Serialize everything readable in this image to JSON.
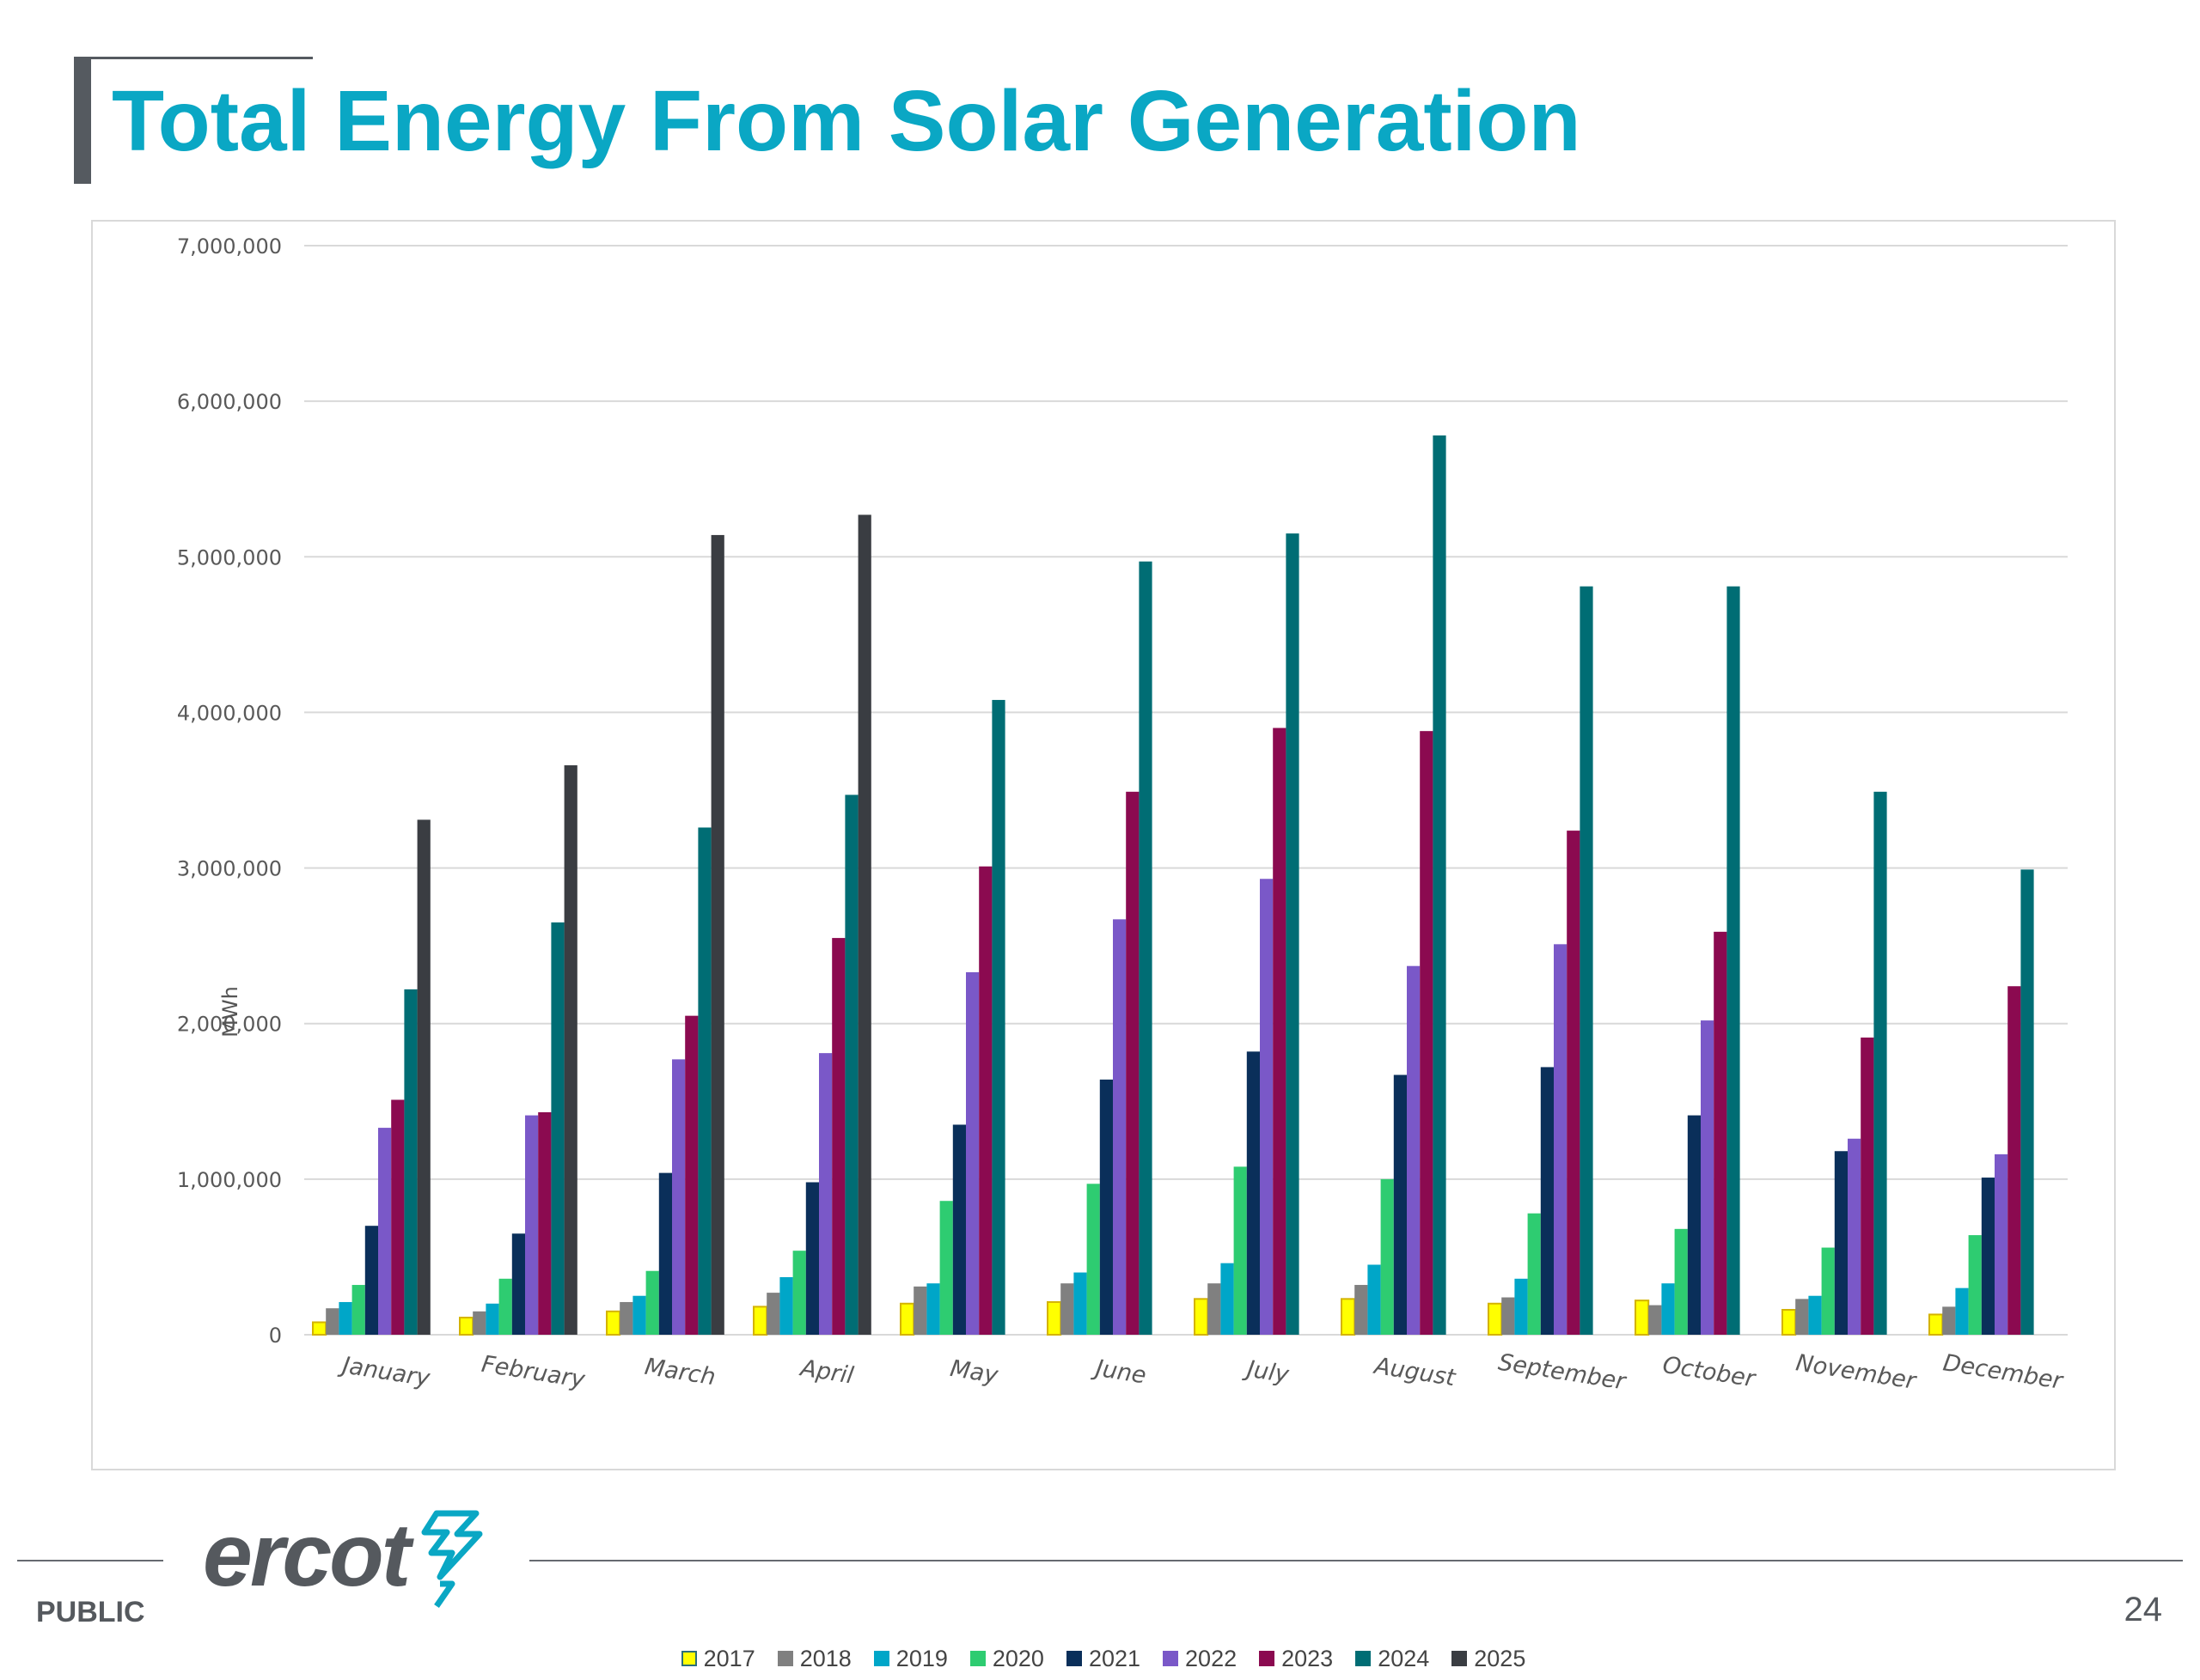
{
  "slide": {
    "title": "Total Energy From Solar Generation",
    "footer_label": "PUBLIC",
    "page_number": "24",
    "logo_text": "ercot"
  },
  "colors": {
    "title": "#0aa7c4",
    "logo": "#55595e",
    "logo_accent": "#0aa7c4"
  },
  "chart_data": {
    "type": "bar",
    "title": "",
    "xlabel": "",
    "ylabel": "MWh",
    "ylim": [
      0,
      7000000
    ],
    "yticks": [
      0,
      1000000,
      2000000,
      3000000,
      4000000,
      5000000,
      6000000,
      7000000
    ],
    "ytick_labels": [
      "0",
      "1,000,000",
      "2,000,000",
      "3,000,000",
      "4,000,000",
      "5,000,000",
      "6,000,000",
      "7,000,000"
    ],
    "grid": true,
    "legend_position": "bottom",
    "categories": [
      "January",
      "February",
      "March",
      "April",
      "May",
      "June",
      "July",
      "August",
      "September",
      "October",
      "November",
      "December"
    ],
    "series": [
      {
        "name": "2017",
        "color": "#ffff00",
        "values": [
          80000,
          110000,
          150000,
          180000,
          200000,
          210000,
          230000,
          230000,
          200000,
          220000,
          160000,
          130000
        ]
      },
      {
        "name": "2018",
        "color": "#808080",
        "values": [
          170000,
          150000,
          210000,
          270000,
          310000,
          330000,
          330000,
          320000,
          240000,
          190000,
          230000,
          180000
        ]
      },
      {
        "name": "2019",
        "color": "#00a6c8",
        "values": [
          210000,
          200000,
          250000,
          370000,
          330000,
          400000,
          460000,
          450000,
          360000,
          330000,
          250000,
          300000
        ]
      },
      {
        "name": "2020",
        "color": "#2ecc71",
        "values": [
          320000,
          360000,
          410000,
          540000,
          860000,
          970000,
          1080000,
          1000000,
          780000,
          680000,
          560000,
          640000
        ]
      },
      {
        "name": "2021",
        "color": "#0a2f5a",
        "values": [
          700000,
          650000,
          1040000,
          980000,
          1350000,
          1640000,
          1820000,
          1670000,
          1720000,
          1410000,
          1180000,
          1010000
        ]
      },
      {
        "name": "2022",
        "color": "#7a58c8",
        "values": [
          1330000,
          1410000,
          1770000,
          1810000,
          2330000,
          2670000,
          2930000,
          2370000,
          2510000,
          2020000,
          1260000,
          1160000
        ]
      },
      {
        "name": "2023",
        "color": "#8b0a50",
        "values": [
          1510000,
          1430000,
          2050000,
          2550000,
          3010000,
          3490000,
          3900000,
          3880000,
          3240000,
          2590000,
          1910000,
          2240000
        ]
      },
      {
        "name": "2024",
        "color": "#006d74",
        "values": [
          2220000,
          2650000,
          3260000,
          3470000,
          4080000,
          4970000,
          5150000,
          5780000,
          4810000,
          4810000,
          3490000,
          2990000
        ]
      },
      {
        "name": "2025",
        "color": "#3a3d42",
        "values": [
          3310000,
          3660000,
          5140000,
          5270000,
          null,
          null,
          null,
          null,
          null,
          null,
          null,
          null
        ]
      }
    ]
  }
}
